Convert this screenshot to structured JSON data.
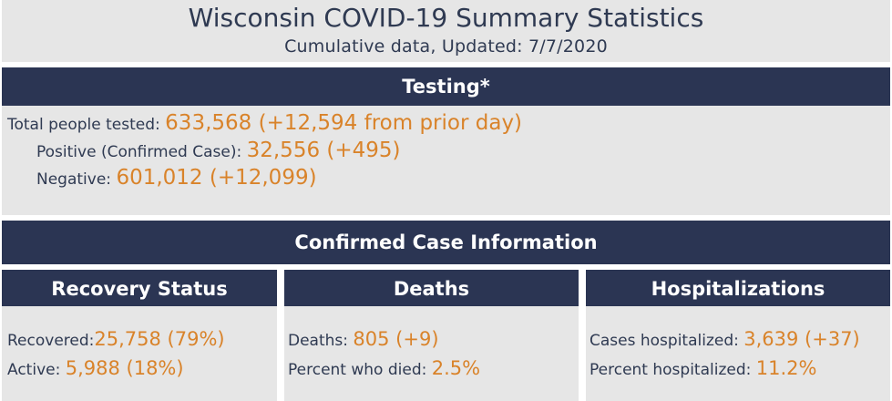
{
  "title": "Wisconsin COVID-19 Summary Statistics",
  "subtitle": "Cumulative data, Updated: 7/7/2020",
  "colors": {
    "header": "#2b3553",
    "panel": "#e6e6e6",
    "accent": "#d9832a",
    "text": "#2f3a52"
  },
  "testing": {
    "header": "Testing*",
    "total_label": "Total people tested: ",
    "total_value": "633,568 (+12,594 from prior day)",
    "positive_label": "Positive (Confirmed Case): ",
    "positive_value": "32,556 (+495)",
    "negative_label": "Negative: ",
    "negative_value": "601,012 (+12,099)"
  },
  "confirmed": {
    "header": "Confirmed Case Information"
  },
  "recovery": {
    "header": "Recovery Status",
    "recovered_label": "Recovered:",
    "recovered_value": "25,758 (79%)",
    "active_label": "Active: ",
    "active_value": "5,988 (18%)"
  },
  "deaths": {
    "header": "Deaths",
    "deaths_label": "Deaths: ",
    "deaths_value": "805 (+9)",
    "percent_label": "Percent who died: ",
    "percent_value": "2.5%"
  },
  "hospitalizations": {
    "header": "Hospitalizations",
    "cases_label": "Cases hospitalized: ",
    "cases_value": "3,639 (+37)",
    "percent_label": "Percent hospitalized: ",
    "percent_value": "11.2%"
  }
}
